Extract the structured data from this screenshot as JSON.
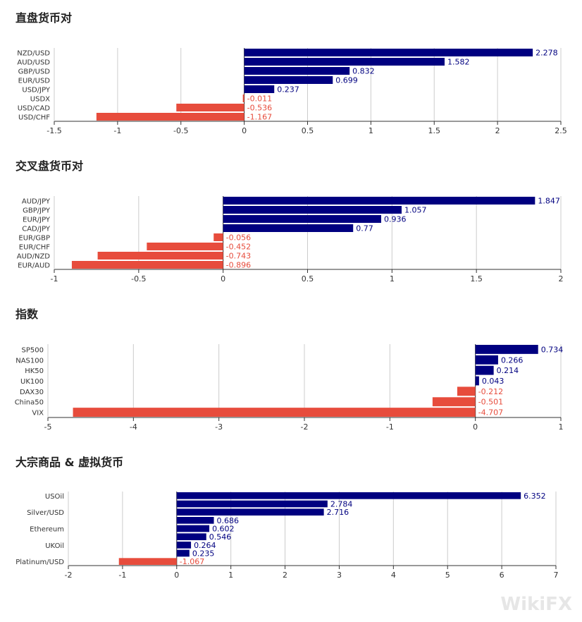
{
  "colors": {
    "positive": "#000080",
    "negative": "#e74c3c",
    "grid": "#cccccc"
  },
  "watermark": "WikiFX",
  "chart_data": [
    {
      "type": "bar",
      "orientation": "horizontal",
      "title": "直盘货币对",
      "categories": [
        "NZD/USD",
        "AUD/USD",
        "GBP/USD",
        "EUR/USD",
        "USD/JPY",
        "USDX",
        "USD/CAD",
        "USD/CHF"
      ],
      "values": [
        2.278,
        1.582,
        0.832,
        0.699,
        0.237,
        -0.011,
        -0.536,
        -1.167
      ],
      "xlim": [
        -1.5,
        2.5
      ],
      "xticks": [
        "-1.5",
        "-1",
        "-0.5",
        "0",
        "0.5",
        "1",
        "1.5",
        "2",
        "2.5"
      ],
      "grid": true
    },
    {
      "type": "bar",
      "orientation": "horizontal",
      "title": "交叉盘货币对",
      "categories": [
        "AUD/JPY",
        "GBP/JPY",
        "EUR/JPY",
        "CAD/JPY",
        "EUR/GBP",
        "EUR/CHF",
        "AUD/NZD",
        "EUR/AUD"
      ],
      "values": [
        1.847,
        1.057,
        0.936,
        0.77,
        -0.056,
        -0.452,
        -0.743,
        -0.896
      ],
      "xlim": [
        -1,
        2
      ],
      "xticks": [
        "-1",
        "-0.5",
        "0",
        "0.5",
        "1",
        "1.5",
        "2"
      ],
      "grid": true
    },
    {
      "type": "bar",
      "orientation": "horizontal",
      "title": "指数",
      "categories": [
        "SP500",
        "NAS100",
        "HK50",
        "UK100",
        "DAX30",
        "China50",
        "VIX"
      ],
      "values": [
        0.734,
        0.266,
        0.214,
        0.043,
        -0.212,
        -0.501,
        -4.707
      ],
      "xlim": [
        -5,
        1
      ],
      "xticks": [
        "-5",
        "-4",
        "-3",
        "-2",
        "-1",
        "0",
        "1"
      ],
      "grid": true
    },
    {
      "type": "bar",
      "orientation": "horizontal",
      "title": "大宗商品 & 虚拟货币",
      "categories": [
        "USOil",
        "",
        "Silver/USD",
        "",
        "Ethereum",
        "",
        "UKOil",
        "",
        "Platinum/USD"
      ],
      "values": [
        6.352,
        2.784,
        2.716,
        0.686,
        0.602,
        0.546,
        0.264,
        0.235,
        -1.067
      ],
      "xlim": [
        -2,
        7
      ],
      "xticks": [
        "-2",
        "-1",
        "0",
        "1",
        "2",
        "3",
        "4",
        "5",
        "6",
        "7"
      ],
      "grid": true
    }
  ]
}
